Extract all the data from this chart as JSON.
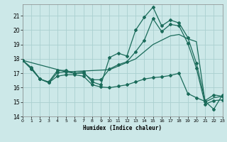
{
  "xlabel": "Humidex (Indice chaleur)",
  "bg_color": "#cce8e8",
  "grid_color": "#aad0d0",
  "line_color": "#1a6b5a",
  "xlim": [
    0,
    23
  ],
  "ylim": [
    14,
    21.8
  ],
  "yticks": [
    14,
    15,
    16,
    17,
    18,
    19,
    20,
    21
  ],
  "xticks": [
    0,
    1,
    2,
    3,
    4,
    5,
    6,
    7,
    8,
    9,
    10,
    11,
    12,
    13,
    14,
    15,
    16,
    17,
    18,
    19,
    20,
    21,
    22,
    23
  ],
  "series": [
    {
      "x": [
        0,
        1,
        2,
        3,
        4,
        5,
        6,
        7,
        8,
        9,
        10,
        11,
        12,
        13,
        14,
        15,
        16,
        17,
        18,
        19,
        20,
        21,
        22,
        23
      ],
      "y": [
        17.9,
        17.4,
        16.6,
        16.4,
        17.2,
        17.2,
        17.0,
        17.1,
        16.4,
        16.2,
        18.1,
        18.4,
        18.2,
        20.0,
        20.9,
        21.6,
        20.3,
        20.7,
        20.5,
        19.5,
        17.7,
        15.1,
        15.5,
        15.4
      ],
      "marker": "D",
      "markersize": 2.0,
      "linewidth": 0.9
    },
    {
      "x": [
        0,
        5,
        10,
        13,
        14,
        15,
        16,
        17,
        18,
        19,
        20,
        21,
        22,
        23
      ],
      "y": [
        17.9,
        17.1,
        17.25,
        18.0,
        18.5,
        19.0,
        19.3,
        19.6,
        19.7,
        19.4,
        19.2,
        15.0,
        15.3,
        15.4
      ],
      "marker": null,
      "markersize": 0,
      "linewidth": 0.9
    },
    {
      "x": [
        0,
        1,
        2,
        3,
        4,
        5,
        6,
        7,
        8,
        9,
        10,
        11,
        12,
        13,
        14,
        15,
        16,
        17,
        18,
        19,
        20,
        21,
        22,
        23
      ],
      "y": [
        17.9,
        17.3,
        16.6,
        16.35,
        16.8,
        16.9,
        16.9,
        16.8,
        16.2,
        16.05,
        16.0,
        16.1,
        16.2,
        16.4,
        16.6,
        16.7,
        16.75,
        16.85,
        17.0,
        15.6,
        15.3,
        15.05,
        14.5,
        15.5
      ],
      "marker": "D",
      "markersize": 2.0,
      "linewidth": 0.9
    },
    {
      "x": [
        0,
        1,
        2,
        3,
        4,
        5,
        6,
        7,
        8,
        9,
        10,
        11,
        12,
        13,
        14,
        15,
        16,
        17,
        18,
        19,
        20,
        21,
        22,
        23
      ],
      "y": [
        17.9,
        17.3,
        16.6,
        16.35,
        17.05,
        17.1,
        17.0,
        17.0,
        16.55,
        16.55,
        17.3,
        17.6,
        17.8,
        18.5,
        19.3,
        20.8,
        19.9,
        20.4,
        20.3,
        19.1,
        17.35,
        14.85,
        15.1,
        15.15
      ],
      "marker": "D",
      "markersize": 2.0,
      "linewidth": 0.9
    }
  ]
}
